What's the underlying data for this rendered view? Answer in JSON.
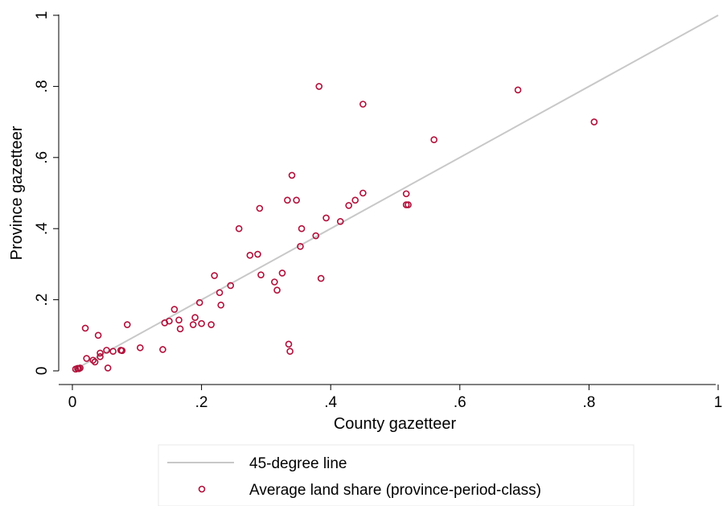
{
  "chart_data": {
    "type": "scatter",
    "title": "",
    "xlabel": "County gazetteer",
    "ylabel": "Province gazetteer",
    "xlim": [
      0,
      1
    ],
    "ylim": [
      0,
      1
    ],
    "xticks": [
      0,
      0.2,
      0.4,
      0.6,
      0.8,
      1
    ],
    "xtick_labels": [
      "0",
      ".2",
      ".4",
      ".6",
      ".8",
      "1"
    ],
    "yticks": [
      0,
      0.2,
      0.4,
      0.6,
      0.8,
      1
    ],
    "ytick_labels": [
      "0",
      ".2",
      ".4",
      ".6",
      ".8",
      "1"
    ],
    "grid": false,
    "legend_position": "bottom",
    "colors": {
      "line": "#c8c8c8",
      "points": "#b0103a"
    },
    "series": [
      {
        "name": "45-degree line",
        "type": "line",
        "x": [
          0,
          1
        ],
        "y": [
          0,
          1
        ]
      },
      {
        "name": "Average land share (province-period-class)",
        "type": "scatter",
        "points": [
          [
            0.005,
            0.005
          ],
          [
            0.008,
            0.007
          ],
          [
            0.01,
            0.006
          ],
          [
            0.012,
            0.008
          ],
          [
            0.02,
            0.12
          ],
          [
            0.022,
            0.035
          ],
          [
            0.032,
            0.03
          ],
          [
            0.035,
            0.025
          ],
          [
            0.04,
            0.1
          ],
          [
            0.043,
            0.05
          ],
          [
            0.043,
            0.04
          ],
          [
            0.053,
            0.058
          ],
          [
            0.055,
            0.008
          ],
          [
            0.063,
            0.055
          ],
          [
            0.075,
            0.058
          ],
          [
            0.077,
            0.057
          ],
          [
            0.085,
            0.13
          ],
          [
            0.105,
            0.065
          ],
          [
            0.14,
            0.06
          ],
          [
            0.143,
            0.135
          ],
          [
            0.15,
            0.14
          ],
          [
            0.158,
            0.173
          ],
          [
            0.165,
            0.143
          ],
          [
            0.167,
            0.118
          ],
          [
            0.187,
            0.13
          ],
          [
            0.19,
            0.15
          ],
          [
            0.197,
            0.192
          ],
          [
            0.2,
            0.133
          ],
          [
            0.215,
            0.13
          ],
          [
            0.22,
            0.268
          ],
          [
            0.228,
            0.22
          ],
          [
            0.23,
            0.185
          ],
          [
            0.245,
            0.24
          ],
          [
            0.258,
            0.4
          ],
          [
            0.275,
            0.325
          ],
          [
            0.287,
            0.328
          ],
          [
            0.29,
            0.457
          ],
          [
            0.292,
            0.27
          ],
          [
            0.313,
            0.25
          ],
          [
            0.317,
            0.227
          ],
          [
            0.325,
            0.275
          ],
          [
            0.333,
            0.48
          ],
          [
            0.335,
            0.075
          ],
          [
            0.337,
            0.055
          ],
          [
            0.34,
            0.55
          ],
          [
            0.347,
            0.48
          ],
          [
            0.353,
            0.35
          ],
          [
            0.355,
            0.4
          ],
          [
            0.377,
            0.38
          ],
          [
            0.382,
            0.8
          ],
          [
            0.385,
            0.26
          ],
          [
            0.393,
            0.43
          ],
          [
            0.415,
            0.42
          ],
          [
            0.428,
            0.465
          ],
          [
            0.438,
            0.48
          ],
          [
            0.45,
            0.5
          ],
          [
            0.45,
            0.75
          ],
          [
            0.517,
            0.498
          ],
          [
            0.517,
            0.467
          ],
          [
            0.52,
            0.467
          ],
          [
            0.56,
            0.65
          ],
          [
            0.69,
            0.79
          ],
          [
            0.808,
            0.7
          ]
        ]
      }
    ]
  }
}
